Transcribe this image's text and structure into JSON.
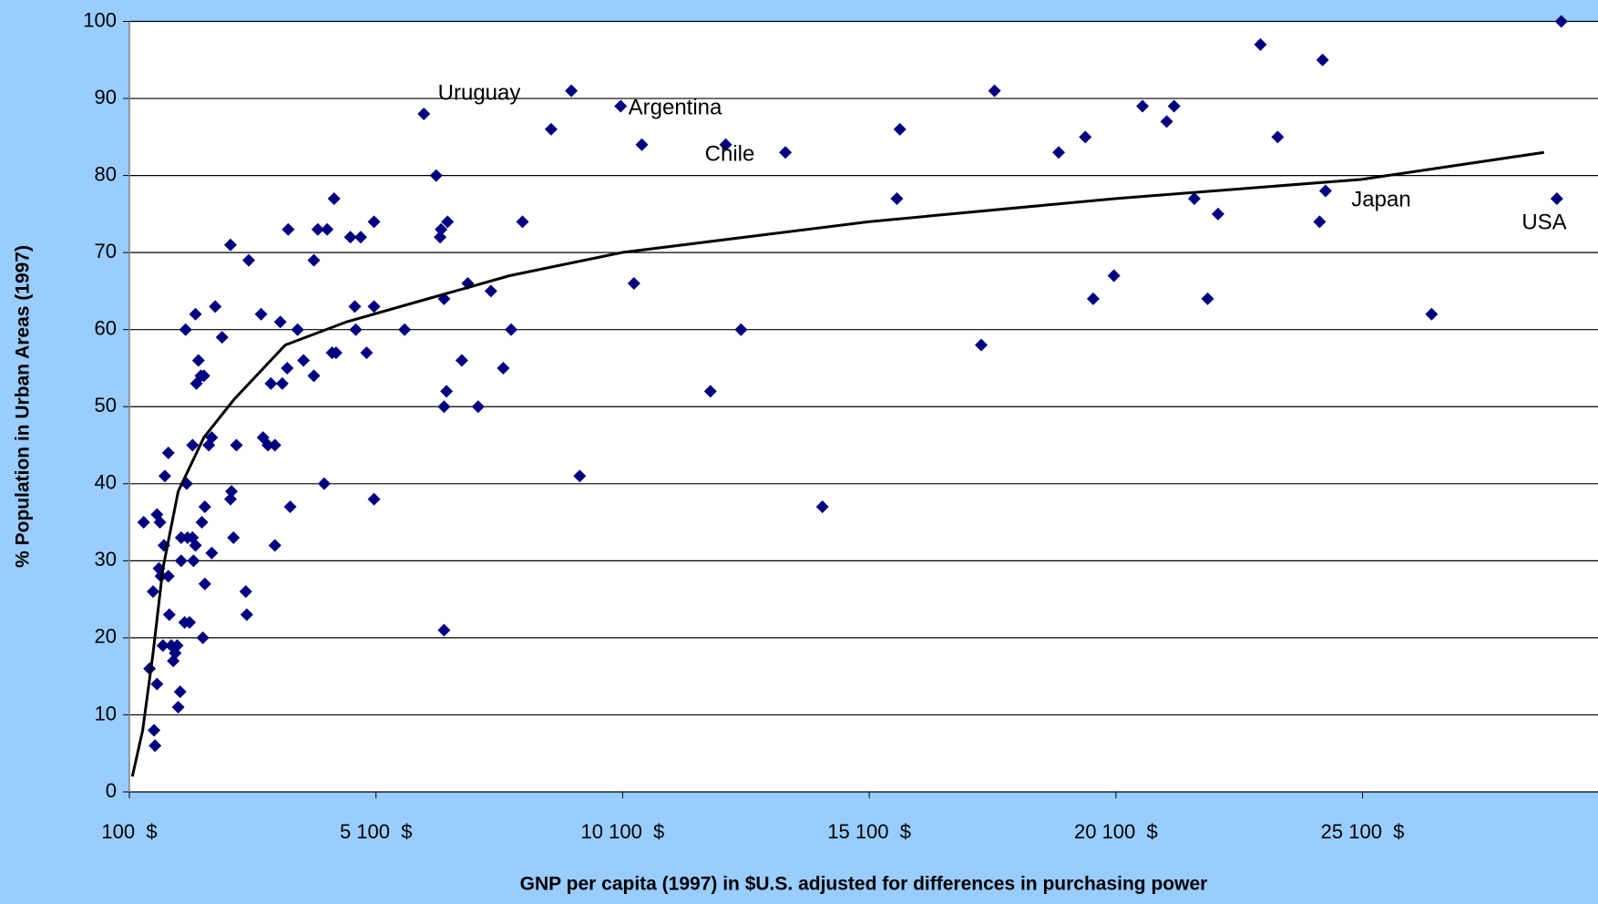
{
  "chart_data": {
    "type": "scatter",
    "x_label": "GNP per capita (1997) in $U.S. adjusted for differences in purchasing power",
    "y_label": "% Population in Urban Areas (1997)",
    "color": "#000080",
    "line_color": "#000000",
    "grid": true,
    "xlim": [
      100,
      29800
    ],
    "ylim": [
      0,
      100
    ],
    "xticks": [
      {
        "value": 100,
        "label": "100  $"
      },
      {
        "value": 5100,
        "label": "5 100  $"
      },
      {
        "value": 10100,
        "label": "10 100  $"
      },
      {
        "value": 15100,
        "label": "15 100  $"
      },
      {
        "value": 20100,
        "label": "20 100  $"
      },
      {
        "value": 25100,
        "label": "25 100  $"
      }
    ],
    "yticks": [
      0,
      10,
      20,
      30,
      40,
      50,
      60,
      70,
      80,
      90,
      100
    ],
    "x": [
      390,
      510,
      580,
      600,
      620,
      660,
      660,
      700,
      720,
      740,
      780,
      800,
      820,
      890,
      890,
      910,
      950,
      990,
      1030,
      1070,
      1090,
      1130,
      1150,
      1150,
      1220,
      1240,
      1260,
      1280,
      1320,
      1380,
      1380,
      1400,
      1440,
      1440,
      1460,
      1500,
      1550,
      1570,
      1590,
      1610,
      1630,
      1630,
      1710,
      1770,
      1770,
      1840,
      1980,
      2150,
      2150,
      2170,
      2210,
      2270,
      2460,
      2480,
      2520,
      2770,
      2810,
      2910,
      2970,
      3050,
      3050,
      3160,
      3200,
      3320,
      3300,
      3360,
      3510,
      3630,
      3840,
      3840,
      3920,
      4050,
      4110,
      4210,
      4250,
      4290,
      4580,
      4670,
      4690,
      4790,
      4910,
      5060,
      5060,
      5060,
      5680,
      6070,
      6320,
      6400,
      6420,
      6480,
      6480,
      6480,
      6530,
      6550,
      6840,
      6960,
      7170,
      7430,
      7680,
      7840,
      8070,
      8650,
      9060,
      9230,
      10060,
      10330,
      10490,
      11880,
      12190,
      12500,
      13400,
      14150,
      15660,
      15720,
      17370,
      17640,
      18940,
      19480,
      19640,
      20060,
      20640,
      21130,
      21280,
      21690,
      21960,
      22170,
      23030,
      23380,
      24230,
      24290,
      24350,
      26500,
      29040,
      29130
    ],
    "values": [
      35,
      16,
      26,
      8,
      6,
      14,
      36,
      29,
      35,
      28,
      19,
      32,
      41,
      44,
      28,
      23,
      19,
      17,
      18,
      19,
      11,
      13,
      30,
      33,
      22,
      60,
      40,
      33,
      22,
      33,
      45,
      30,
      32,
      62,
      53,
      56,
      54,
      35,
      20,
      54,
      37,
      27,
      45,
      46,
      31,
      63,
      59,
      71,
      38,
      39,
      33,
      45,
      26,
      23,
      69,
      62,
      46,
      45,
      53,
      45,
      32,
      61,
      53,
      73,
      55,
      37,
      60,
      56,
      69,
      54,
      73,
      40,
      73,
      57,
      77,
      57,
      72,
      63,
      60,
      72,
      57,
      74,
      63,
      38,
      60,
      88,
      80,
      72,
      73,
      64,
      21,
      50,
      52,
      74,
      56,
      66,
      50,
      65,
      55,
      60,
      74,
      86,
      91,
      41,
      89,
      66,
      84,
      52,
      84,
      60,
      83,
      37,
      77,
      86,
      58,
      91,
      83,
      85,
      64,
      67,
      89,
      87,
      89,
      77,
      64,
      75,
      97,
      85,
      74,
      95,
      78,
      62,
      77,
      100
    ],
    "trendline": {
      "x": [
        160,
        370,
        580,
        780,
        1090,
        1610,
        2230,
        3260,
        4500,
        6150,
        7810,
        10080,
        15080,
        20080,
        25080,
        28780
      ],
      "values": [
        2,
        8,
        18,
        29,
        39,
        46,
        51,
        58,
        61,
        64,
        67,
        70,
        74,
        77,
        79.5,
        83
      ]
    },
    "annotations": [
      "Uruguay",
      "Argentina",
      "Chile",
      "Japan",
      "USA"
    ]
  }
}
